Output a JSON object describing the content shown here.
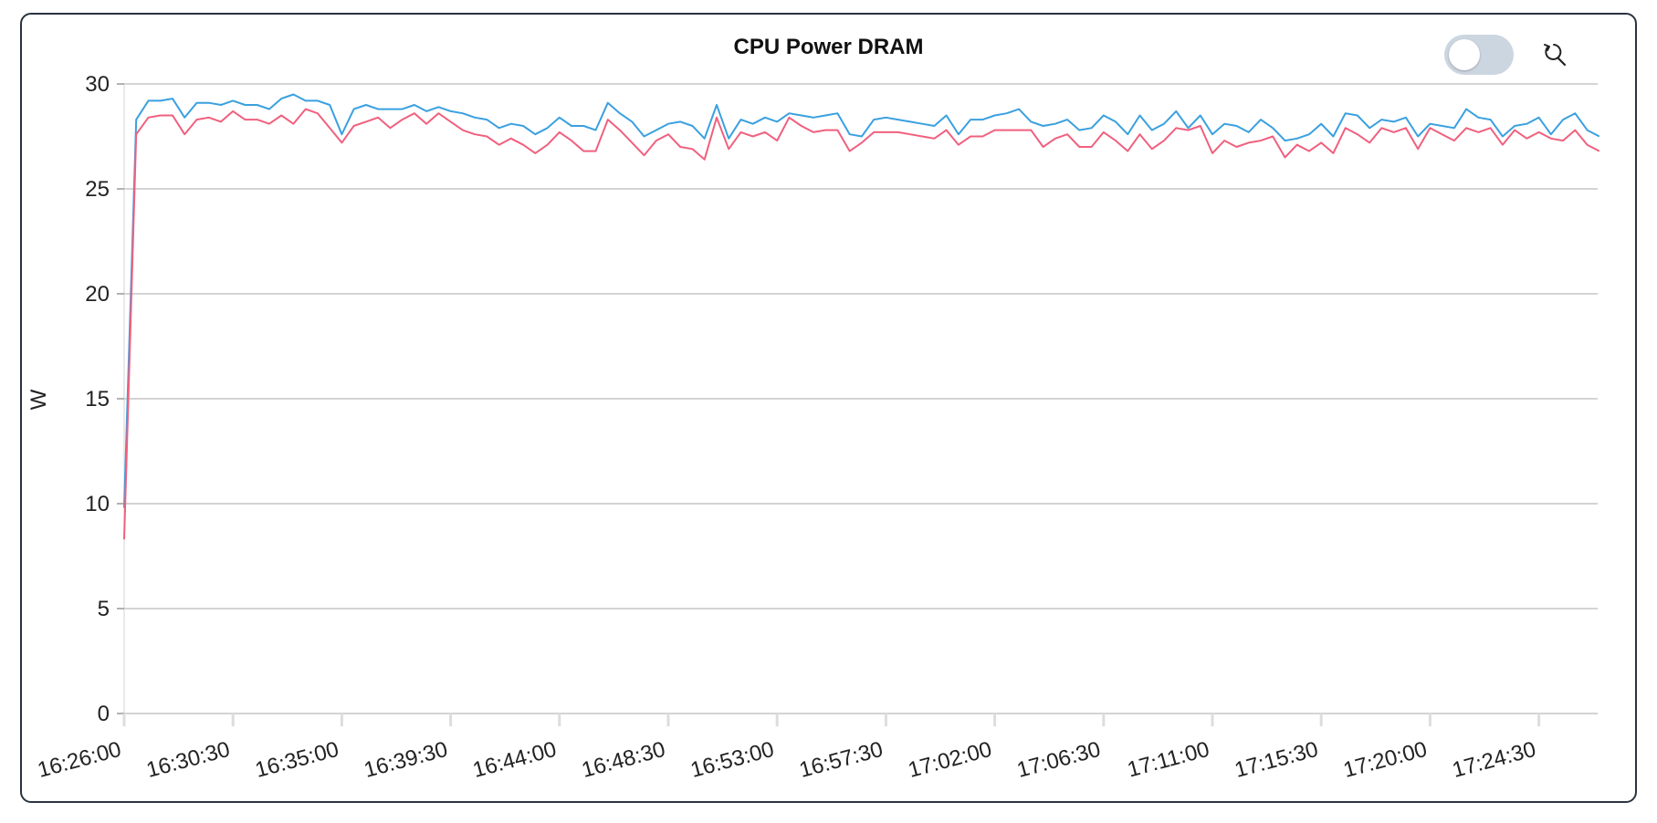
{
  "chart_data": {
    "type": "line",
    "title": "CPU Power DRAM",
    "ylabel": "W",
    "xlabel": "",
    "ylim": [
      0,
      30
    ],
    "y_ticks": [
      0,
      5,
      10,
      15,
      20,
      25,
      30
    ],
    "x_ticks": [
      "16:26:00",
      "16:30:30",
      "16:35:00",
      "16:39:30",
      "16:44:00",
      "16:48:30",
      "16:53:00",
      "16:57:30",
      "17:02:00",
      "17:06:30",
      "17:11:00",
      "17:15:30",
      "17:20:00",
      "17:24:30"
    ],
    "grid": true,
    "x_interval_seconds": 30,
    "x_start": "16:26:00",
    "series": [
      {
        "color": "#3aa0e0",
        "values": [
          9.8,
          28.3,
          29.2,
          29.2,
          29.3,
          28.4,
          29.1,
          29.1,
          29.0,
          29.2,
          29.0,
          29.0,
          28.8,
          29.3,
          29.5,
          29.2,
          29.2,
          29.0,
          27.6,
          28.8,
          29.0,
          28.8,
          28.8,
          28.8,
          29.0,
          28.7,
          28.9,
          28.7,
          28.6,
          28.4,
          28.3,
          27.9,
          28.1,
          28.0,
          27.6,
          27.9,
          28.4,
          28.0,
          28.0,
          27.8,
          29.1,
          28.6,
          28.2,
          27.5,
          27.8,
          28.1,
          28.2,
          28.0,
          27.4,
          29.0,
          27.4,
          28.3,
          28.1,
          28.4,
          28.2,
          28.6,
          28.5,
          28.4,
          28.5,
          28.6,
          27.6,
          27.5,
          28.3,
          28.4,
          28.3,
          28.2,
          28.1,
          28.0,
          28.5,
          27.6,
          28.3,
          28.3,
          28.5,
          28.6,
          28.8,
          28.2,
          28.0,
          28.1,
          28.3,
          27.8,
          27.9,
          28.5,
          28.2,
          27.6,
          28.5,
          27.8,
          28.1,
          28.7,
          27.9,
          28.5,
          27.6,
          28.1,
          28.0,
          27.7,
          28.3,
          27.9,
          27.3,
          27.4,
          27.6,
          28.1,
          27.5,
          28.6,
          28.5,
          27.9,
          28.3,
          28.2,
          28.4,
          27.5,
          28.1,
          28.0,
          27.9,
          28.8,
          28.4,
          28.3,
          27.5,
          28.0,
          28.1,
          28.4,
          27.6,
          28.3,
          28.6,
          27.8,
          27.5
        ]
      },
      {
        "color": "#f0607e",
        "values": [
          8.3,
          27.6,
          28.4,
          28.5,
          28.5,
          27.6,
          28.3,
          28.4,
          28.2,
          28.7,
          28.3,
          28.3,
          28.1,
          28.5,
          28.1,
          28.8,
          28.6,
          27.9,
          27.2,
          28.0,
          28.2,
          28.4,
          27.9,
          28.3,
          28.6,
          28.1,
          28.6,
          28.2,
          27.8,
          27.6,
          27.5,
          27.1,
          27.4,
          27.1,
          26.7,
          27.1,
          27.7,
          27.3,
          26.8,
          26.8,
          28.3,
          27.8,
          27.2,
          26.6,
          27.3,
          27.6,
          27.0,
          26.9,
          26.4,
          28.4,
          26.9,
          27.7,
          27.5,
          27.7,
          27.3,
          28.4,
          28.0,
          27.7,
          27.8,
          27.8,
          26.8,
          27.2,
          27.7,
          27.7,
          27.7,
          27.6,
          27.5,
          27.4,
          27.8,
          27.1,
          27.5,
          27.5,
          27.8,
          27.8,
          27.8,
          27.8,
          27.0,
          27.4,
          27.6,
          27.0,
          27.0,
          27.7,
          27.3,
          26.8,
          27.6,
          26.9,
          27.3,
          27.9,
          27.8,
          28.0,
          26.7,
          27.3,
          27.0,
          27.2,
          27.3,
          27.5,
          26.5,
          27.1,
          26.8,
          27.2,
          26.7,
          27.9,
          27.6,
          27.2,
          27.9,
          27.7,
          27.9,
          26.9,
          27.9,
          27.6,
          27.3,
          27.9,
          27.7,
          27.9,
          27.1,
          27.8,
          27.4,
          27.7,
          27.4,
          27.3,
          27.8,
          27.1,
          26.8
        ]
      }
    ]
  },
  "colors": {
    "border": "#2a3340",
    "grid": "#bbbbbb",
    "toggle_track": "#ccd6e0"
  },
  "controls": {
    "toggle_state": "off",
    "reset_icon": "reset-zoom-icon"
  }
}
